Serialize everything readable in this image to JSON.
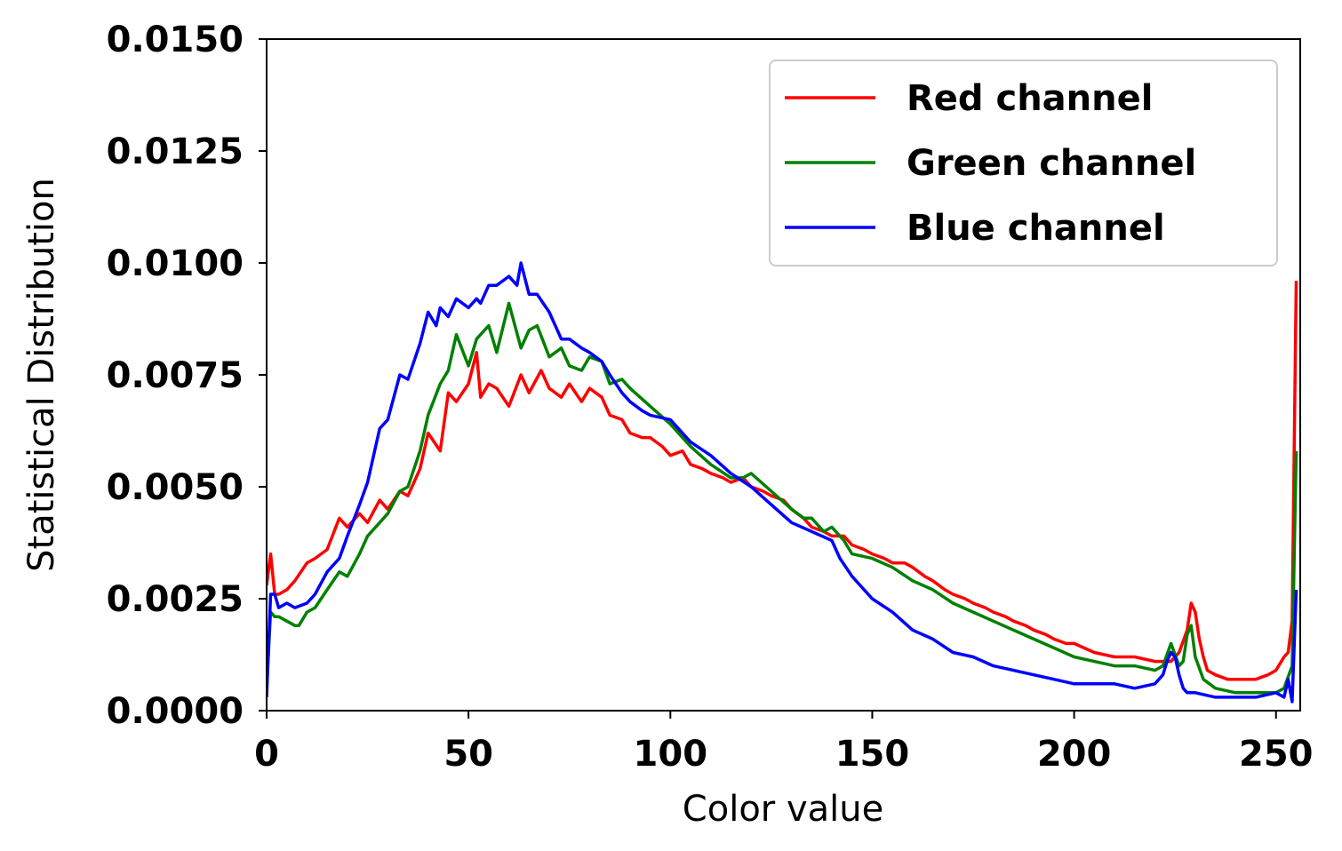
{
  "chart_data": {
    "type": "line",
    "title": "",
    "xlabel": "Color value",
    "ylabel": "Statistical Distribution",
    "xlim": [
      0,
      256
    ],
    "ylim": [
      0,
      0.015
    ],
    "x_ticks": [
      0,
      50,
      100,
      150,
      200,
      250
    ],
    "x_tick_labels": [
      "0",
      "50",
      "100",
      "150",
      "200",
      "250"
    ],
    "y_ticks": [
      0,
      0.0025,
      0.005,
      0.0075,
      0.01,
      0.0125,
      0.015
    ],
    "y_tick_labels": [
      "0.0000",
      "0.0025",
      "0.0050",
      "0.0075",
      "0.0100",
      "0.0125",
      "0.0150"
    ],
    "grid": false,
    "legend_position": "top-right",
    "series": [
      {
        "name": "Red channel",
        "color": "#ff0000",
        "x": [
          0,
          1,
          2,
          3,
          5,
          7,
          10,
          12,
          15,
          18,
          20,
          23,
          25,
          28,
          30,
          33,
          35,
          38,
          40,
          43,
          45,
          47,
          50,
          52,
          53,
          55,
          57,
          60,
          63,
          65,
          68,
          70,
          73,
          75,
          78,
          80,
          83,
          85,
          88,
          90,
          93,
          95,
          98,
          100,
          103,
          105,
          108,
          110,
          113,
          115,
          118,
          120,
          123,
          125,
          128,
          130,
          133,
          135,
          138,
          140,
          143,
          145,
          148,
          150,
          153,
          155,
          158,
          160,
          163,
          165,
          168,
          170,
          173,
          175,
          178,
          180,
          183,
          185,
          188,
          190,
          193,
          195,
          198,
          200,
          205,
          210,
          215,
          220,
          224,
          226,
          228,
          229,
          230,
          231,
          232,
          233,
          235,
          238,
          240,
          243,
          245,
          248,
          250,
          252,
          253,
          254,
          255
        ],
        "y": [
          0.0028,
          0.0035,
          0.0026,
          0.0026,
          0.0027,
          0.0029,
          0.0033,
          0.0034,
          0.0036,
          0.0043,
          0.0041,
          0.0044,
          0.0042,
          0.0047,
          0.0045,
          0.0049,
          0.0048,
          0.0054,
          0.0062,
          0.0058,
          0.0071,
          0.0069,
          0.0073,
          0.008,
          0.007,
          0.0073,
          0.0072,
          0.0068,
          0.0075,
          0.0071,
          0.0076,
          0.0072,
          0.007,
          0.0073,
          0.0069,
          0.0072,
          0.007,
          0.0066,
          0.0065,
          0.0062,
          0.0061,
          0.0061,
          0.0059,
          0.0057,
          0.0058,
          0.0055,
          0.0054,
          0.0053,
          0.0052,
          0.0051,
          0.0052,
          0.005,
          0.0049,
          0.0048,
          0.0047,
          0.0045,
          0.0043,
          0.0041,
          0.004,
          0.0039,
          0.0039,
          0.0037,
          0.0036,
          0.0035,
          0.0034,
          0.0033,
          0.0033,
          0.0032,
          0.003,
          0.0029,
          0.0027,
          0.0026,
          0.0025,
          0.0024,
          0.0023,
          0.0022,
          0.0021,
          0.002,
          0.0019,
          0.0018,
          0.0017,
          0.0016,
          0.0015,
          0.0015,
          0.0013,
          0.0012,
          0.0012,
          0.0011,
          0.0011,
          0.0013,
          0.0018,
          0.0024,
          0.0022,
          0.0016,
          0.0012,
          0.0009,
          0.0008,
          0.0007,
          0.0007,
          0.0007,
          0.0007,
          0.0008,
          0.0009,
          0.0012,
          0.0013,
          0.002,
          0.0096
        ]
      },
      {
        "name": "Green channel",
        "color": "#008000",
        "x": [
          0,
          1,
          2,
          3,
          5,
          7,
          8,
          10,
          12,
          15,
          18,
          20,
          23,
          25,
          28,
          30,
          33,
          35,
          38,
          40,
          43,
          45,
          47,
          50,
          52,
          53,
          55,
          57,
          60,
          63,
          65,
          67,
          70,
          73,
          75,
          78,
          80,
          83,
          85,
          88,
          90,
          95,
          100,
          105,
          110,
          115,
          118,
          120,
          125,
          130,
          133,
          135,
          138,
          140,
          143,
          145,
          150,
          155,
          160,
          165,
          170,
          175,
          180,
          185,
          190,
          195,
          200,
          205,
          210,
          215,
          220,
          222,
          224,
          226,
          227,
          228,
          229,
          230,
          232,
          235,
          240,
          245,
          250,
          252,
          254,
          255
        ],
        "y": [
          0.0005,
          0.0022,
          0.0021,
          0.0021,
          0.002,
          0.0019,
          0.0019,
          0.0022,
          0.0023,
          0.0027,
          0.0031,
          0.003,
          0.0035,
          0.0039,
          0.0042,
          0.0044,
          0.0049,
          0.005,
          0.0058,
          0.0066,
          0.0073,
          0.0076,
          0.0084,
          0.0077,
          0.0083,
          0.0084,
          0.0086,
          0.008,
          0.0091,
          0.0081,
          0.0085,
          0.0086,
          0.0079,
          0.0081,
          0.0077,
          0.0076,
          0.0079,
          0.0078,
          0.0073,
          0.0074,
          0.0072,
          0.0068,
          0.0064,
          0.0059,
          0.0055,
          0.0052,
          0.0052,
          0.0053,
          0.0049,
          0.0045,
          0.0043,
          0.0043,
          0.004,
          0.0041,
          0.0038,
          0.0035,
          0.0034,
          0.0032,
          0.0029,
          0.0027,
          0.0024,
          0.0022,
          0.002,
          0.0018,
          0.0016,
          0.0014,
          0.0012,
          0.0011,
          0.001,
          0.001,
          0.0009,
          0.001,
          0.0015,
          0.001,
          0.0011,
          0.0017,
          0.0019,
          0.0012,
          0.0007,
          0.0005,
          0.0004,
          0.0004,
          0.0004,
          0.0005,
          0.001,
          0.0058
        ]
      },
      {
        "name": "Blue channel",
        "color": "#0000ff",
        "x": [
          0,
          1,
          2,
          3,
          5,
          7,
          10,
          12,
          15,
          18,
          20,
          23,
          25,
          28,
          30,
          33,
          35,
          38,
          40,
          42,
          43,
          45,
          47,
          50,
          52,
          53,
          55,
          57,
          60,
          62,
          63,
          65,
          67,
          70,
          73,
          75,
          78,
          80,
          83,
          85,
          88,
          90,
          93,
          95,
          100,
          105,
          110,
          115,
          120,
          125,
          130,
          135,
          140,
          142,
          145,
          150,
          155,
          160,
          165,
          170,
          175,
          180,
          185,
          190,
          195,
          200,
          205,
          210,
          215,
          220,
          222,
          223,
          224,
          225,
          226,
          227,
          228,
          229,
          230,
          235,
          240,
          245,
          250,
          252,
          253,
          254,
          255
        ],
        "y": [
          0.0003,
          0.0026,
          0.0026,
          0.0023,
          0.0024,
          0.0023,
          0.0024,
          0.0026,
          0.0031,
          0.0034,
          0.0039,
          0.0046,
          0.0051,
          0.0063,
          0.0065,
          0.0075,
          0.0074,
          0.0082,
          0.0089,
          0.0086,
          0.009,
          0.0088,
          0.0092,
          0.009,
          0.0092,
          0.0091,
          0.0095,
          0.0095,
          0.0097,
          0.0095,
          0.01,
          0.0093,
          0.0093,
          0.0089,
          0.0083,
          0.0083,
          0.0081,
          0.008,
          0.0078,
          0.0075,
          0.0071,
          0.0069,
          0.0067,
          0.0066,
          0.0065,
          0.006,
          0.0057,
          0.0053,
          0.005,
          0.0046,
          0.0042,
          0.004,
          0.0038,
          0.0034,
          0.003,
          0.0025,
          0.0022,
          0.0018,
          0.0016,
          0.0013,
          0.0012,
          0.001,
          0.0009,
          0.0008,
          0.0007,
          0.0006,
          0.0006,
          0.0006,
          0.0005,
          0.0006,
          0.0008,
          0.0011,
          0.0013,
          0.0012,
          0.0008,
          0.0005,
          0.0004,
          0.0004,
          0.0004,
          0.0003,
          0.0003,
          0.0003,
          0.0004,
          0.0003,
          0.0007,
          0.0002,
          0.0027
        ]
      }
    ]
  }
}
